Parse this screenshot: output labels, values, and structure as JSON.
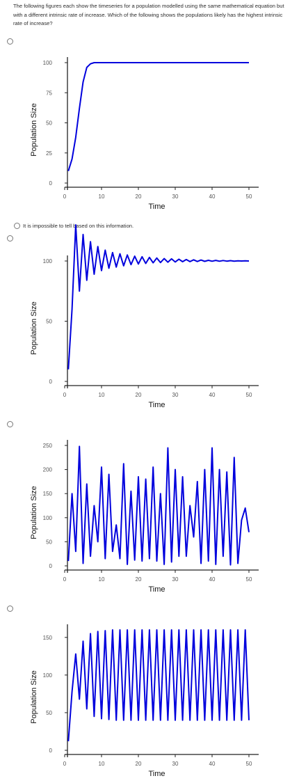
{
  "question": "The following figures each show the timeseries for a population modelled using the same mathematical equation but with a different intrinsic rate of increase. Which of the following shows the populations  likely has the highest intrinsic rate of increase?",
  "text_option": "It is impossible to tell based on this information.",
  "colors": {
    "line": "#0000dd",
    "radio_border": "#777777"
  },
  "chart_data": [
    {
      "type": "line",
      "xlabel": "Time",
      "ylabel": "Population Size",
      "xlim": [
        0,
        50
      ],
      "ylim": [
        0,
        100
      ],
      "xticks": [
        0,
        10,
        20,
        30,
        40,
        50
      ],
      "yticks": [
        0,
        25,
        50,
        75,
        100
      ],
      "x": [
        1,
        2,
        3,
        4,
        5,
        6,
        7,
        8,
        9,
        10,
        12,
        15,
        20,
        25,
        30,
        35,
        40,
        45,
        50
      ],
      "values": [
        10,
        20,
        38,
        62,
        84,
        96,
        99,
        100,
        100,
        100,
        100,
        100,
        100,
        100,
        100,
        100,
        100,
        100,
        100
      ]
    },
    {
      "type": "line",
      "xlabel": "Time",
      "ylabel": "Population Size",
      "xlim": [
        0,
        50
      ],
      "ylim": [
        0,
        100
      ],
      "xticks": [
        0,
        10,
        20,
        30,
        40,
        50
      ],
      "yticks": [
        0,
        50,
        100
      ],
      "x": [
        1,
        2,
        3,
        4,
        5,
        6,
        7,
        8,
        9,
        10,
        11,
        12,
        13,
        14,
        15,
        16,
        17,
        18,
        19,
        20,
        21,
        22,
        23,
        24,
        25,
        26,
        27,
        28,
        29,
        30,
        31,
        32,
        33,
        34,
        35,
        36,
        37,
        38,
        39,
        40,
        41,
        42,
        43,
        44,
        45,
        46,
        47,
        48,
        49,
        50
      ],
      "values": [
        10,
        60,
        130,
        75,
        122,
        84,
        116,
        89,
        112,
        92,
        109,
        94,
        107,
        95,
        106,
        96,
        105,
        97,
        104,
        97.5,
        103.5,
        98,
        103,
        98.5,
        102.5,
        98.7,
        102,
        99,
        101.8,
        99.2,
        101.5,
        99.4,
        101.2,
        99.5,
        101,
        99.6,
        100.8,
        99.7,
        100.6,
        99.8,
        100.5,
        99.8,
        100.4,
        99.9,
        100.3,
        99.9,
        100.2,
        100,
        100.1,
        100
      ]
    },
    {
      "type": "line",
      "xlabel": "Time",
      "ylabel": "Population Size",
      "xlim": [
        0,
        50
      ],
      "ylim": [
        0,
        250
      ],
      "xticks": [
        0,
        10,
        20,
        30,
        40,
        50
      ],
      "yticks": [
        0,
        50,
        100,
        150,
        200,
        250
      ],
      "x": [
        1,
        2,
        3,
        4,
        5,
        6,
        7,
        8,
        9,
        10,
        11,
        12,
        13,
        14,
        15,
        16,
        17,
        18,
        19,
        20,
        21,
        22,
        23,
        24,
        25,
        26,
        27,
        28,
        29,
        30,
        31,
        32,
        33,
        34,
        35,
        36,
        37,
        38,
        39,
        40,
        41,
        42,
        43,
        44,
        45,
        46,
        47,
        48,
        49,
        50
      ],
      "values": [
        10,
        150,
        30,
        248,
        5,
        170,
        20,
        125,
        50,
        205,
        15,
        190,
        30,
        85,
        15,
        212,
        3,
        155,
        12,
        185,
        10,
        180,
        15,
        205,
        10,
        150,
        3,
        245,
        8,
        200,
        20,
        185,
        20,
        125,
        60,
        175,
        5,
        200,
        10,
        245,
        3,
        200,
        20,
        195,
        2,
        225,
        5,
        95,
        120,
        70
      ]
    },
    {
      "type": "line",
      "xlabel": "Time",
      "ylabel": "Population Size",
      "xlim": [
        0,
        50
      ],
      "ylim": [
        0,
        160
      ],
      "xticks": [
        0,
        10,
        20,
        30,
        40,
        50
      ],
      "yticks": [
        0,
        50,
        100,
        150
      ],
      "x": [
        1,
        2,
        3,
        4,
        5,
        6,
        7,
        8,
        9,
        10,
        11,
        12,
        13,
        14,
        15,
        16,
        17,
        18,
        19,
        20,
        21,
        22,
        23,
        24,
        25,
        26,
        27,
        28,
        29,
        30,
        31,
        32,
        33,
        34,
        35,
        36,
        37,
        38,
        39,
        40,
        41,
        42,
        43,
        44,
        45,
        46,
        47,
        48,
        49,
        50
      ],
      "values": [
        12,
        78,
        128,
        68,
        145,
        55,
        155,
        45,
        158,
        42,
        159,
        41,
        160,
        40,
        160,
        40,
        160,
        40,
        160,
        40,
        160,
        40,
        160,
        40,
        160,
        40,
        160,
        40,
        160,
        40,
        160,
        40,
        160,
        40,
        160,
        40,
        160,
        40,
        160,
        40,
        160,
        40,
        160,
        40,
        160,
        40,
        160,
        40,
        160,
        40
      ]
    }
  ]
}
